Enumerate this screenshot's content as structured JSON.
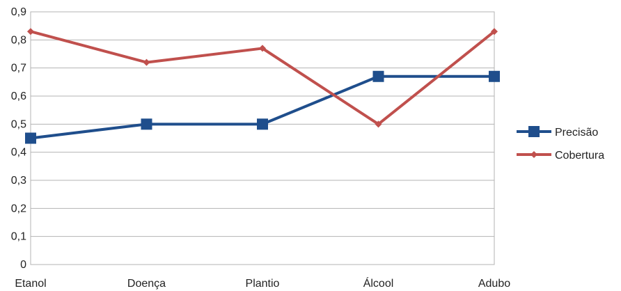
{
  "chart_data": {
    "type": "line",
    "categories": [
      "Etanol",
      "Doença",
      "Plantio",
      "Álcool",
      "Adubo"
    ],
    "series": [
      {
        "name": "Precisão",
        "values": [
          0.45,
          0.5,
          0.5,
          0.67,
          0.67
        ],
        "color": "#1f4e8c",
        "marker": "square"
      },
      {
        "name": "Cobertura",
        "values": [
          0.83,
          0.72,
          0.77,
          0.5,
          0.83
        ],
        "color": "#c0504d",
        "marker": "diamond"
      }
    ],
    "ylim": [
      0,
      0.9
    ],
    "yticks": [
      "0",
      "0,1",
      "0,2",
      "0,3",
      "0,4",
      "0,5",
      "0,6",
      "0,7",
      "0,8",
      "0,9"
    ],
    "grid": true,
    "legend": "right"
  }
}
